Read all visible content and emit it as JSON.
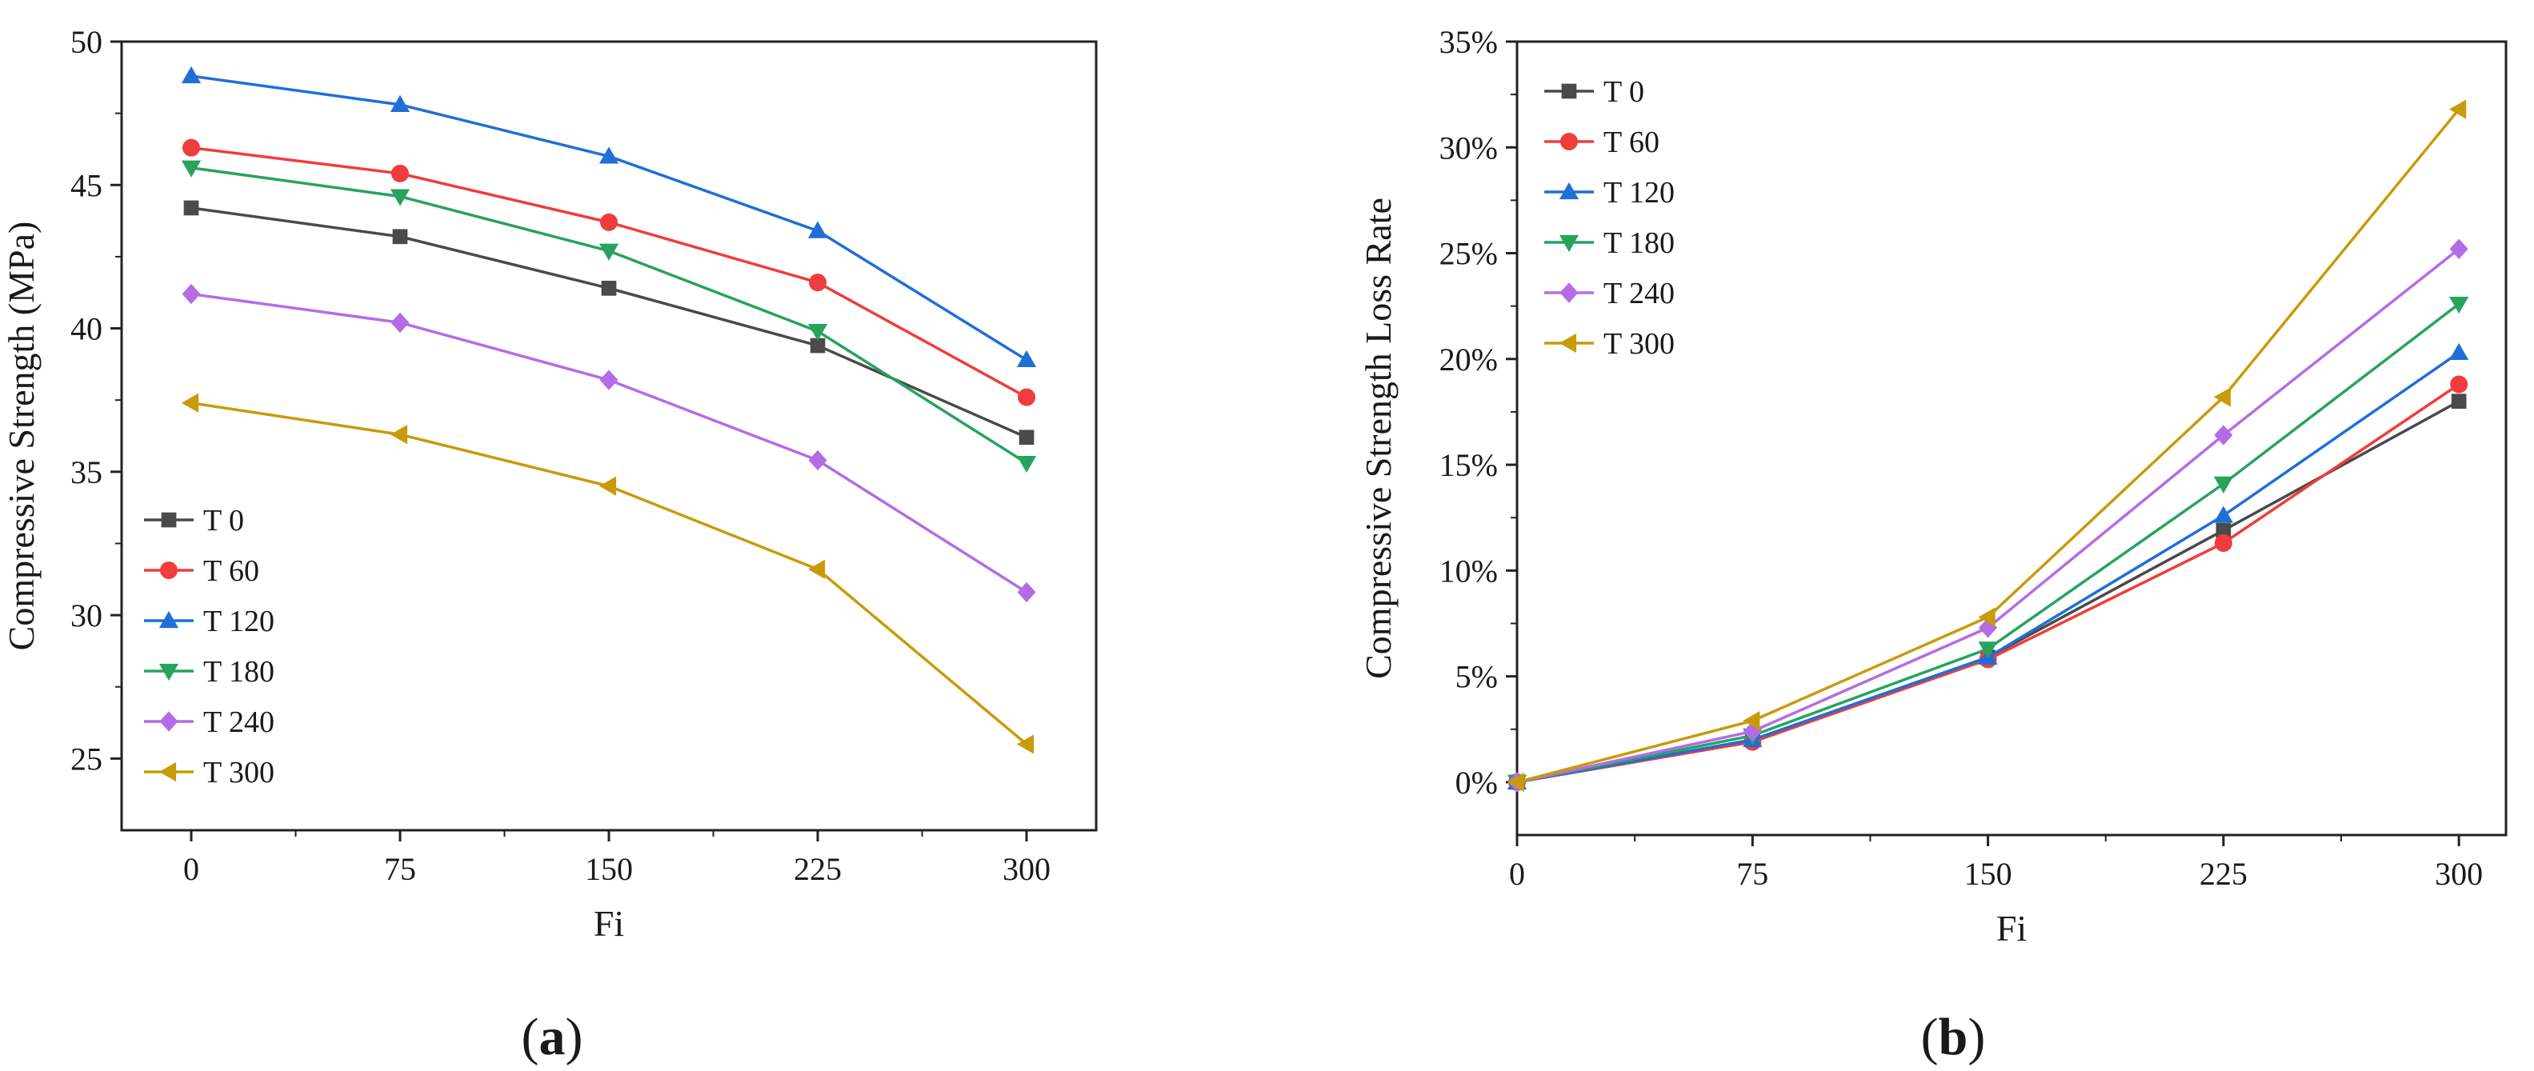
{
  "panels": [
    {
      "label_open": "(",
      "label_letter": "a",
      "label_close": ")"
    },
    {
      "label_open": "(",
      "label_letter": "b",
      "label_close": ")"
    }
  ],
  "series_style": [
    {
      "name": "T 0",
      "color": "#4a4a4a",
      "marker": "square"
    },
    {
      "name": "T 60",
      "color": "#f03c3c",
      "marker": "circle"
    },
    {
      "name": "T 120",
      "color": "#1f6fd6",
      "marker": "triangle-up"
    },
    {
      "name": "T 180",
      "color": "#27a35e",
      "marker": "triangle-down"
    },
    {
      "name": "T 240",
      "color": "#b46ce6",
      "marker": "diamond"
    },
    {
      "name": "T 300",
      "color": "#c99a0a",
      "marker": "triangle-left"
    }
  ],
  "chart_data": [
    {
      "type": "line",
      "panel": "a",
      "title": "",
      "xlabel": "Fi",
      "ylabel": "Compressive Strength (MPa)",
      "x": [
        0,
        75,
        150,
        225,
        300
      ],
      "xlim": [
        -25,
        325
      ],
      "ylim": [
        22.5,
        50
      ],
      "xticks": [
        "0",
        "75",
        "150",
        "225",
        "300"
      ],
      "yticks": [
        "25",
        "30",
        "35",
        "40",
        "45",
        "50"
      ],
      "ytick_values": [
        25,
        30,
        35,
        40,
        45,
        50
      ],
      "legend": "bottom-left",
      "grid": false,
      "series": [
        {
          "name": "T 0",
          "values": [
            44.2,
            43.2,
            41.4,
            39.4,
            36.2
          ]
        },
        {
          "name": "T 60",
          "values": [
            46.3,
            45.4,
            43.7,
            41.6,
            37.6
          ]
        },
        {
          "name": "T 120",
          "values": [
            48.8,
            47.8,
            46.0,
            43.4,
            38.9
          ]
        },
        {
          "name": "T 180",
          "values": [
            45.6,
            44.6,
            42.7,
            39.9,
            35.3
          ]
        },
        {
          "name": "T 240",
          "values": [
            41.2,
            40.2,
            38.2,
            35.4,
            30.8
          ]
        },
        {
          "name": "T 300",
          "values": [
            37.4,
            36.3,
            34.5,
            31.6,
            25.5
          ]
        }
      ]
    },
    {
      "type": "line",
      "panel": "b",
      "title": "",
      "xlabel": "Fi",
      "ylabel": "Compressive Strength Loss Rate",
      "x": [
        0,
        75,
        150,
        225,
        300
      ],
      "xlim": [
        0,
        315
      ],
      "ylim": [
        -2.5,
        35
      ],
      "xticks": [
        "0",
        "75",
        "150",
        "225",
        "300"
      ],
      "yticks": [
        "0%",
        "5%",
        "10%",
        "15%",
        "20%",
        "25%",
        "30%",
        "35%"
      ],
      "ytick_values": [
        0,
        5,
        10,
        15,
        20,
        25,
        30,
        35
      ],
      "legend": "top-left",
      "grid": false,
      "series": [
        {
          "name": "T 0",
          "values": [
            0,
            2.0,
            5.9,
            11.9,
            18.0
          ]
        },
        {
          "name": "T 60",
          "values": [
            0,
            1.9,
            5.8,
            11.3,
            18.8
          ]
        },
        {
          "name": "T 120",
          "values": [
            0,
            2.0,
            5.9,
            12.6,
            20.3
          ]
        },
        {
          "name": "T 180",
          "values": [
            0,
            2.2,
            6.3,
            14.1,
            22.6
          ]
        },
        {
          "name": "T 240",
          "values": [
            0,
            2.4,
            7.3,
            16.4,
            25.2
          ]
        },
        {
          "name": "T 300",
          "values": [
            0,
            2.9,
            7.8,
            18.2,
            31.8
          ]
        }
      ]
    }
  ]
}
